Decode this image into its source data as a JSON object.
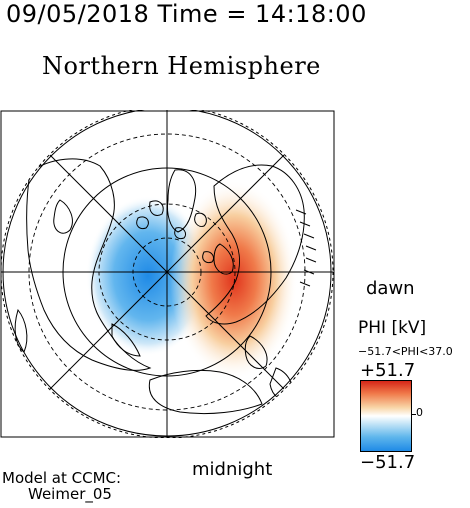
{
  "header": {
    "text": "09/05/2018 Time = 14:18:00"
  },
  "title": "Northern Hemisphere",
  "labels": {
    "dawn": "dawn",
    "midnight": "midnight"
  },
  "legend": {
    "title": "PHI [kV]",
    "range": "−51.7<PHI<37.0",
    "max": "+51.7",
    "zero": "0",
    "min": "−51.7",
    "colors": {
      "positive": "#d62618",
      "neutral": "#ffffff",
      "negative": "#1f8ae6"
    }
  },
  "credit": {
    "line1": "Model at CCMC:",
    "line2": "Weimer_05"
  }
}
